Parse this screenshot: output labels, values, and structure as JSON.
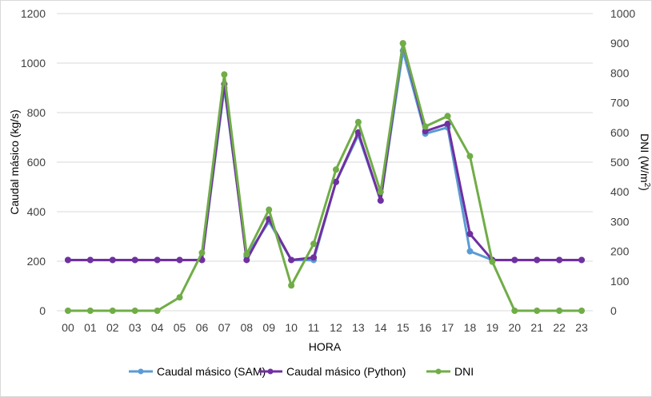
{
  "chart_data": {
    "type": "line",
    "xlabel": "HORA",
    "ylabel": "Caudal másico (kg/s)",
    "y2label_main": "DNI (W/m",
    "y2label_sup": "2",
    "y2label_end": ")",
    "categories": [
      "00",
      "01",
      "02",
      "03",
      "04",
      "05",
      "06",
      "07",
      "08",
      "09",
      "10",
      "11",
      "12",
      "13",
      "14",
      "15",
      "16",
      "17",
      "18",
      "19",
      "20",
      "21",
      "22",
      "23"
    ],
    "ylim": [
      0,
      1200
    ],
    "y_ticks": [
      "0",
      "200",
      "400",
      "600",
      "800",
      "1000",
      "1200"
    ],
    "y2lim": [
      0,
      1000
    ],
    "y2_ticks": [
      "0",
      "100",
      "200",
      "300",
      "400",
      "500",
      "600",
      "700",
      "800",
      "900",
      "1000"
    ],
    "grid": true,
    "legend_position": "bottom",
    "series": [
      {
        "name": "Caudal másico (SAM)",
        "axis": "left",
        "color": "#5b9bd5",
        "values": [
          205,
          205,
          205,
          205,
          205,
          205,
          205,
          900,
          220,
          360,
          205,
          205,
          520,
          710,
          445,
          1050,
          715,
          740,
          240,
          205,
          205,
          205,
          205,
          205
        ]
      },
      {
        "name": "Caudal másico (Python)",
        "axis": "left",
        "color": "#7030a0",
        "values": [
          205,
          205,
          205,
          205,
          205,
          205,
          205,
          915,
          205,
          370,
          205,
          215,
          520,
          720,
          445,
          1080,
          725,
          755,
          310,
          205,
          205,
          205,
          205,
          205
        ]
      },
      {
        "name": "DNI",
        "axis": "right",
        "color": "#70ad47",
        "values": [
          0,
          0,
          0,
          0,
          0,
          45,
          195,
          795,
          190,
          340,
          85,
          225,
          475,
          635,
          400,
          900,
          620,
          655,
          520,
          165,
          0,
          0,
          0,
          0
        ]
      }
    ]
  }
}
